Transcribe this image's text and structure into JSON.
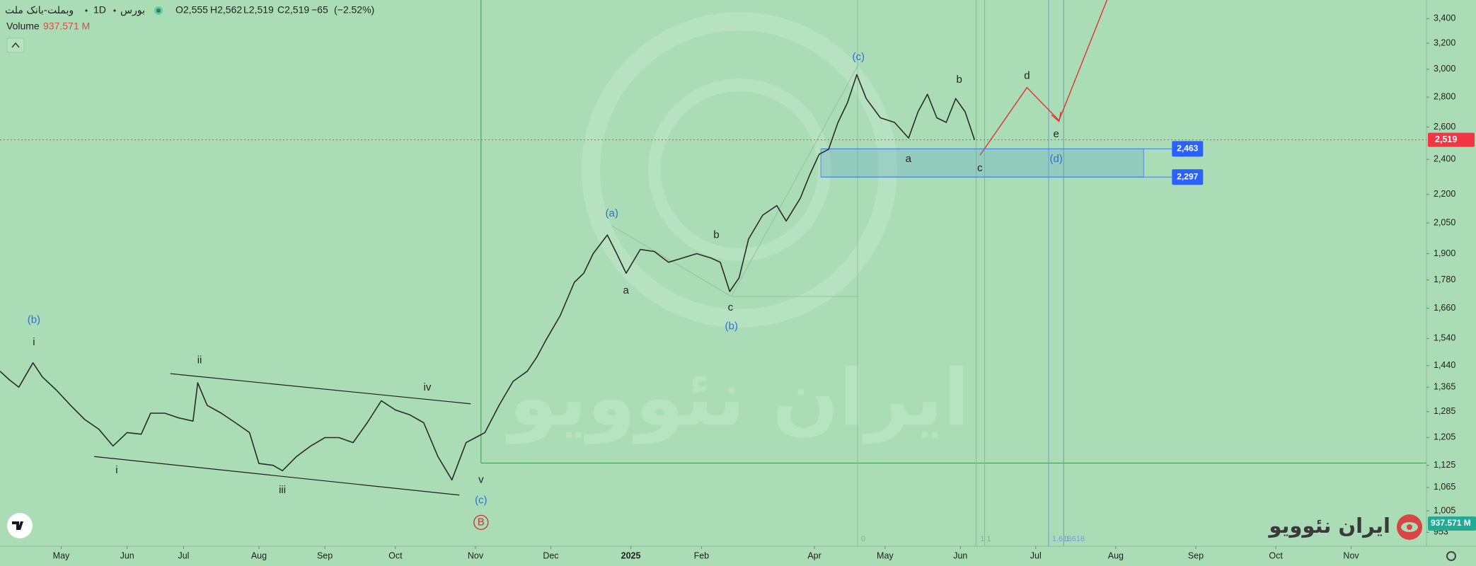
{
  "chart_data": {
    "type": "line",
    "symbol": {
      "name": "وبملت-بانک ملت",
      "interval": "1D",
      "exchange": "بورس"
    },
    "ohlc": [
      {
        "value": 2555,
        "label": "O2,555"
      },
      {
        "value": 2562,
        "label": "H2,562"
      },
      {
        "value": 2519,
        "label": "L2,519"
      },
      {
        "value": 2519,
        "label": "C2,519"
      }
    ],
    "change": {
      "value": -65,
      "label": "−65"
    },
    "change_pct": {
      "value": -2.52,
      "label": "(−2.52%)"
    },
    "volume_title": "Volume",
    "volume": {
      "value": 937.571,
      "label": "937.571 M"
    },
    "last_price": {
      "value": 2519,
      "label": "2,519"
    },
    "color": "#2b2b2b",
    "log_scale": true,
    "grid": false,
    "x": [
      0,
      2,
      4,
      7,
      9,
      12,
      15,
      18,
      21,
      24,
      27,
      30,
      32,
      35,
      38,
      41,
      42,
      44,
      47,
      50,
      53,
      55,
      58,
      60,
      63,
      66,
      69,
      72,
      75,
      78,
      81,
      84,
      87,
      90,
      93,
      96,
      99,
      101,
      103,
      106,
      109,
      112,
      114,
      116,
      119,
      122,
      124,
      126,
      129,
      131,
      133,
      136,
      139,
      142,
      145,
      148,
      151,
      153,
      155,
      157,
      159,
      162,
      165,
      167,
      170,
      172,
      174,
      176,
      178,
      180,
      182,
      184,
      187,
      190,
      193,
      195,
      197,
      199,
      201,
      203,
      205,
      207
    ],
    "values": [
      1420,
      1390,
      1365,
      1450,
      1400,
      1355,
      1305,
      1260,
      1230,
      1180,
      1220,
      1215,
      1280,
      1280,
      1265,
      1255,
      1380,
      1305,
      1280,
      1250,
      1220,
      1130,
      1125,
      1110,
      1150,
      1180,
      1205,
      1205,
      1190,
      1250,
      1320,
      1290,
      1275,
      1250,
      1150,
      1085,
      1190,
      1205,
      1220,
      1305,
      1385,
      1420,
      1470,
      1535,
      1630,
      1770,
      1810,
      1900,
      1990,
      1900,
      1810,
      1920,
      1910,
      1860,
      1880,
      1900,
      1880,
      1860,
      1730,
      1790,
      1970,
      2090,
      2140,
      2060,
      2180,
      2310,
      2430,
      2460,
      2630,
      2760,
      2960,
      2790,
      2660,
      2630,
      2530,
      2700,
      2820,
      2660,
      2630,
      2790,
      2700,
      2519
    ],
    "xlim": [
      0,
      303
    ],
    "xticks": [
      {
        "value": 13,
        "label": "May"
      },
      {
        "value": 27,
        "label": "Jun"
      },
      {
        "value": 39,
        "label": "Jul"
      },
      {
        "value": 55,
        "label": "Aug"
      },
      {
        "value": 69,
        "label": "Sep"
      },
      {
        "value": 84,
        "label": "Oct"
      },
      {
        "value": 101,
        "label": "Nov"
      },
      {
        "value": 117,
        "label": "Dec"
      },
      {
        "value": 134,
        "label": "2025"
      },
      {
        "value": 149,
        "label": "Feb"
      },
      {
        "value": 173,
        "label": "Apr"
      },
      {
        "value": 188,
        "label": "May"
      },
      {
        "value": 204,
        "label": "Jun"
      },
      {
        "value": 220,
        "label": "Jul"
      },
      {
        "value": 237,
        "label": "Aug"
      },
      {
        "value": 254,
        "label": "Sep"
      },
      {
        "value": 271,
        "label": "Oct"
      },
      {
        "value": 287,
        "label": "Nov"
      }
    ],
    "ylim": [
      924,
      3561
    ],
    "yticks": [
      {
        "value": 3400,
        "label": "3,400"
      },
      {
        "value": 3200,
        "label": "3,200"
      },
      {
        "value": 3000,
        "label": "3,000"
      },
      {
        "value": 2800,
        "label": "2,800"
      },
      {
        "value": 2600,
        "label": "2,600"
      },
      {
        "value": 2400,
        "label": "2,400"
      },
      {
        "value": 2200,
        "label": "2,200"
      },
      {
        "value": 2050,
        "label": "2,050"
      },
      {
        "value": 1900,
        "label": "1,900"
      },
      {
        "value": 1780,
        "label": "1,780"
      },
      {
        "value": 1660,
        "label": "1,660"
      },
      {
        "value": 1540,
        "label": "1,540"
      },
      {
        "value": 1440,
        "label": "1,440"
      },
      {
        "value": 1365,
        "label": "1,365"
      },
      {
        "value": 1285,
        "label": "1,285"
      },
      {
        "value": 1205,
        "label": "1,205"
      },
      {
        "value": 1125,
        "label": "1,125"
      },
      {
        "value": 1065,
        "label": "1,065"
      },
      {
        "value": 1005,
        "label": "1,005"
      },
      953
    ],
    "zone": [
      {
        "value": 2463,
        "label": "2,463"
      },
      {
        "value": 2297,
        "label": "2,297"
      }
    ],
    "annotations": [
      {
        "text": "(b)",
        "color": "#2f6fd6"
      },
      {
        "text": "i",
        "color": "#222222"
      },
      {
        "text": "ii",
        "color": "#222222"
      },
      {
        "text": "i",
        "color": "#222222"
      },
      {
        "text": "iii",
        "color": "#222222"
      },
      {
        "text": "iv",
        "color": "#222222"
      },
      {
        "text": "v",
        "color": "#222222"
      },
      {
        "text": "(c)",
        "color": "#2f6fd6"
      },
      {
        "text": "B",
        "color": "#d03030",
        "circled": true
      },
      {
        "text": "(a)",
        "color": "#2f6fd6"
      },
      {
        "text": "a",
        "color": "#222222"
      },
      {
        "text": "b",
        "color": "#222222"
      },
      {
        "text": "c",
        "color": "#222222"
      },
      {
        "text": "(b)",
        "color": "#2f6fd6"
      },
      {
        "text": "(c)",
        "color": "#2f6fd6"
      },
      {
        "text": "a",
        "color": "#222222"
      },
      {
        "text": "b",
        "color": "#222222"
      },
      {
        "text": "c",
        "color": "#222222"
      },
      {
        "text": "d",
        "color": "#222222"
      },
      {
        "text": "e",
        "color": "#222222"
      },
      {
        "text": "(d)",
        "color": "#2f6fd6"
      },
      {
        "text": "0",
        "color": "#8aa892"
      },
      {
        "text": "1 1",
        "color": "#8aa892"
      },
      {
        "text": "1.618",
        "color": "#7c9fd8"
      },
      {
        "text": "1.618",
        "color": "#7c9fd8"
      }
    ],
    "brand": "ایران نئوویو"
  }
}
